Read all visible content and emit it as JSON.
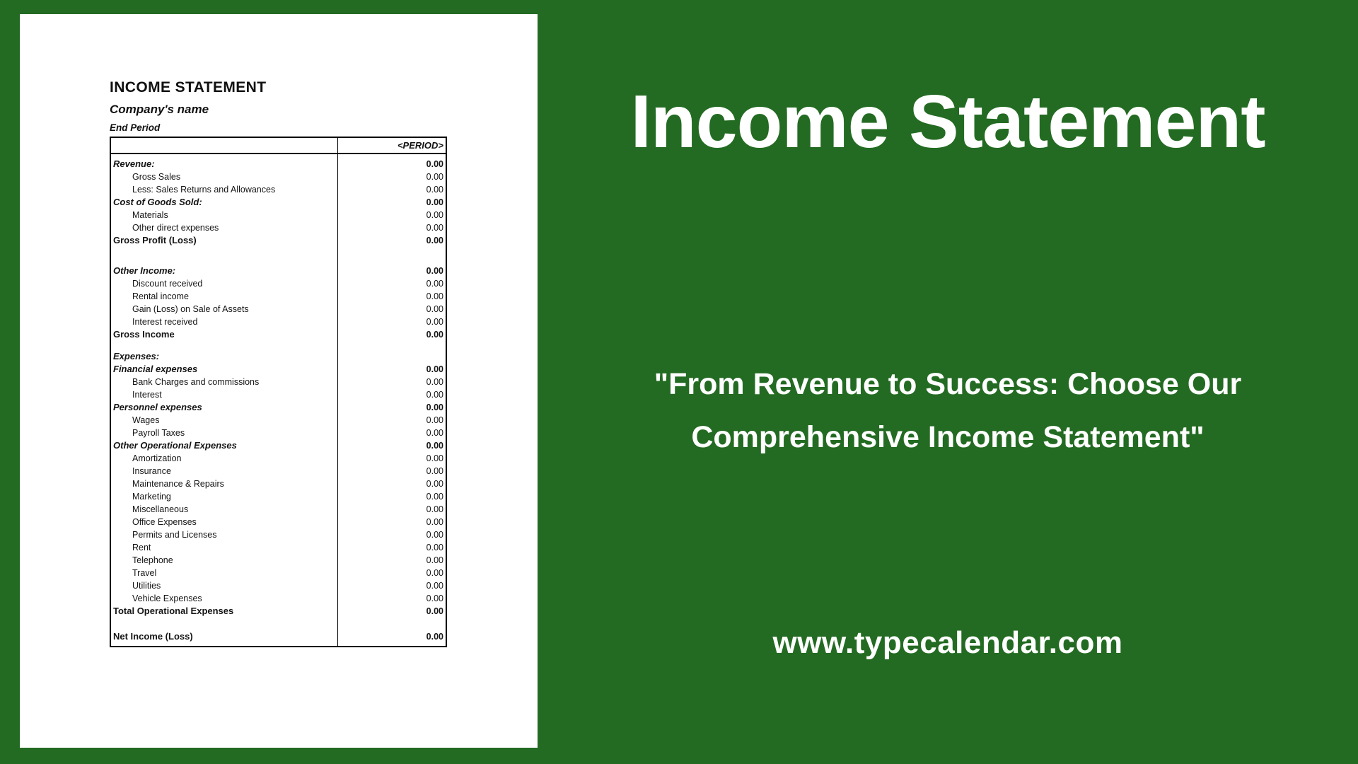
{
  "document": {
    "title": "INCOME STATEMENT",
    "company": "Company's name",
    "period_label": "End Period",
    "table": {
      "header_value": "<PERIOD>",
      "rows": [
        {
          "label": "Revenue:",
          "value": "0.00",
          "style": "section"
        },
        {
          "label": "Gross Sales",
          "value": "0.00",
          "style": "item"
        },
        {
          "label": "Less: Sales Returns and Allowances",
          "value": "0.00",
          "style": "item"
        },
        {
          "label": "Cost of Goods Sold:",
          "value": "0.00",
          "style": "section"
        },
        {
          "label": "Materials",
          "value": "0.00",
          "style": "item"
        },
        {
          "label": "Other direct expenses",
          "value": "0.00",
          "style": "item"
        },
        {
          "label": "Gross Profit (Loss)",
          "value": "0.00",
          "style": "total"
        },
        {
          "label": "",
          "value": "",
          "style": "spacer"
        },
        {
          "label": "Other Income:",
          "value": "0.00",
          "style": "section"
        },
        {
          "label": "Discount received",
          "value": "0.00",
          "style": "item"
        },
        {
          "label": "Rental income",
          "value": "0.00",
          "style": "item"
        },
        {
          "label": "Gain (Loss) on Sale of Assets",
          "value": "0.00",
          "style": "item"
        },
        {
          "label": "Interest received",
          "value": "0.00",
          "style": "item"
        },
        {
          "label": "Gross Income",
          "value": "0.00",
          "style": "total"
        },
        {
          "label": "",
          "value": "",
          "style": "spacer-sm"
        },
        {
          "label": "Expenses:",
          "value": "",
          "style": "section"
        },
        {
          "label": "Financial expenses",
          "value": "0.00",
          "style": "section"
        },
        {
          "label": "Bank Charges and commissions",
          "value": "0.00",
          "style": "item"
        },
        {
          "label": "Interest",
          "value": "0.00",
          "style": "item"
        },
        {
          "label": "Personnel expenses",
          "value": "0.00",
          "style": "section"
        },
        {
          "label": "Wages",
          "value": "0.00",
          "style": "item"
        },
        {
          "label": "Payroll Taxes",
          "value": "0.00",
          "style": "item"
        },
        {
          "label": "Other Operational Expenses",
          "value": "0.00",
          "style": "section"
        },
        {
          "label": "Amortization",
          "value": "0.00",
          "style": "item"
        },
        {
          "label": "Insurance",
          "value": "0.00",
          "style": "item"
        },
        {
          "label": "Maintenance & Repairs",
          "value": "0.00",
          "style": "item"
        },
        {
          "label": "Marketing",
          "value": "0.00",
          "style": "item"
        },
        {
          "label": "Miscellaneous",
          "value": "0.00",
          "style": "item"
        },
        {
          "label": "Office Expenses",
          "value": "0.00",
          "style": "item"
        },
        {
          "label": "Permits and Licenses",
          "value": "0.00",
          "style": "item"
        },
        {
          "label": "Rent",
          "value": "0.00",
          "style": "item"
        },
        {
          "label": "Telephone",
          "value": "0.00",
          "style": "item"
        },
        {
          "label": "Travel",
          "value": "0.00",
          "style": "item"
        },
        {
          "label": "Utilities",
          "value": "0.00",
          "style": "item"
        },
        {
          "label": "Vehicle Expenses",
          "value": "0.00",
          "style": "item"
        },
        {
          "label": "Total Operational Expenses",
          "value": "0.00",
          "style": "total"
        },
        {
          "label": "",
          "value": "",
          "style": "spacer-std"
        },
        {
          "label": "Net Income (Loss)",
          "value": "0.00",
          "style": "total"
        }
      ]
    }
  },
  "panel": {
    "title": "Income Statement",
    "quote_line1": "\"From Revenue to Success: Choose Our",
    "quote_line2": "Comprehensive Income Statement\"",
    "website": "www.typecalendar.com"
  },
  "colors": {
    "background_green": "#236b22",
    "text_white": "#ffffff",
    "document_text": "#101010"
  }
}
